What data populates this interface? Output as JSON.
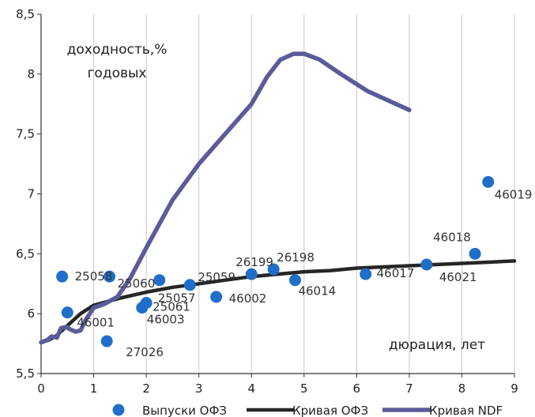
{
  "chart_data": {
    "type": "scatter",
    "title": "",
    "xlabel": "",
    "ylabel": "",
    "xlim": [
      0,
      9
    ],
    "ylim": [
      5.5,
      8.5
    ],
    "x_ticks": [
      "0",
      "1",
      "2",
      "3",
      "4",
      "5",
      "6",
      "7",
      "8",
      "9"
    ],
    "y_ticks": [
      "5,5",
      "6",
      "6,5",
      "7",
      "7,5",
      "8",
      "8,5"
    ],
    "grid": "vertical",
    "legend_position": "bottom",
    "annotations": {
      "y_title_line1": "доходность,%",
      "y_title_line2": "годовых",
      "x_title": "дюрация, лет"
    },
    "series": [
      {
        "name": "Выпуски ОФЗ",
        "kind": "scatter",
        "color": "#1f6fc9",
        "points": [
          {
            "x": 0.4,
            "y": 6.31,
            "label": "25058"
          },
          {
            "x": 0.5,
            "y": 6.01,
            "label": "46001"
          },
          {
            "x": 1.25,
            "y": 5.77,
            "label": "27026"
          },
          {
            "x": 1.3,
            "y": 6.31,
            "label": "25060"
          },
          {
            "x": 1.92,
            "y": 6.05,
            "label": "46003"
          },
          {
            "x": 2.0,
            "y": 6.09,
            "label": "25061"
          },
          {
            "x": 2.25,
            "y": 6.28,
            "label": "25057"
          },
          {
            "x": 2.83,
            "y": 6.24,
            "label": "25059"
          },
          {
            "x": 3.33,
            "y": 6.14,
            "label": "46002"
          },
          {
            "x": 4.0,
            "y": 6.33,
            "label": "26199"
          },
          {
            "x": 4.42,
            "y": 6.37,
            "label": "26198"
          },
          {
            "x": 4.83,
            "y": 6.28,
            "label": "46014"
          },
          {
            "x": 6.17,
            "y": 6.33,
            "label": "46017"
          },
          {
            "x": 7.33,
            "y": 6.41,
            "label": "46021"
          },
          {
            "x": 8.25,
            "y": 6.5,
            "label": "46018"
          },
          {
            "x": 8.5,
            "y": 7.1,
            "label": "46019"
          }
        ]
      },
      {
        "name": "Кривая ОФЗ",
        "kind": "line",
        "color": "#262626",
        "points": [
          [
            0.0,
            5.76
          ],
          [
            0.15,
            5.78
          ],
          [
            0.3,
            5.82
          ],
          [
            0.5,
            5.9
          ],
          [
            0.75,
            6.0
          ],
          [
            1.0,
            6.07
          ],
          [
            1.5,
            6.13
          ],
          [
            2.0,
            6.18
          ],
          [
            2.5,
            6.22
          ],
          [
            3.0,
            6.25
          ],
          [
            3.5,
            6.28
          ],
          [
            4.0,
            6.31
          ],
          [
            4.5,
            6.33
          ],
          [
            5.0,
            6.35
          ],
          [
            5.5,
            6.36
          ],
          [
            6.0,
            6.38
          ],
          [
            6.5,
            6.39
          ],
          [
            7.0,
            6.4
          ],
          [
            7.5,
            6.41
          ],
          [
            8.0,
            6.42
          ],
          [
            8.5,
            6.43
          ],
          [
            9.0,
            6.44
          ]
        ]
      },
      {
        "name": "Кривая NDF",
        "kind": "line",
        "color": "#5b5b9a",
        "points": [
          [
            0.0,
            5.76
          ],
          [
            0.12,
            5.78
          ],
          [
            0.2,
            5.81
          ],
          [
            0.3,
            5.8
          ],
          [
            0.38,
            5.88
          ],
          [
            0.48,
            5.89
          ],
          [
            0.55,
            5.87
          ],
          [
            0.65,
            5.85
          ],
          [
            0.75,
            5.86
          ],
          [
            0.85,
            5.95
          ],
          [
            1.0,
            6.05
          ],
          [
            1.2,
            6.08
          ],
          [
            1.45,
            6.14
          ],
          [
            1.7,
            6.3
          ],
          [
            2.0,
            6.55
          ],
          [
            2.5,
            6.95
          ],
          [
            3.0,
            7.25
          ],
          [
            3.5,
            7.5
          ],
          [
            4.0,
            7.75
          ],
          [
            4.3,
            7.98
          ],
          [
            4.55,
            8.12
          ],
          [
            4.8,
            8.17
          ],
          [
            5.0,
            8.17
          ],
          [
            5.3,
            8.12
          ],
          [
            5.7,
            8.0
          ],
          [
            6.2,
            7.86
          ],
          [
            6.7,
            7.76
          ],
          [
            7.0,
            7.7
          ]
        ]
      }
    ]
  }
}
